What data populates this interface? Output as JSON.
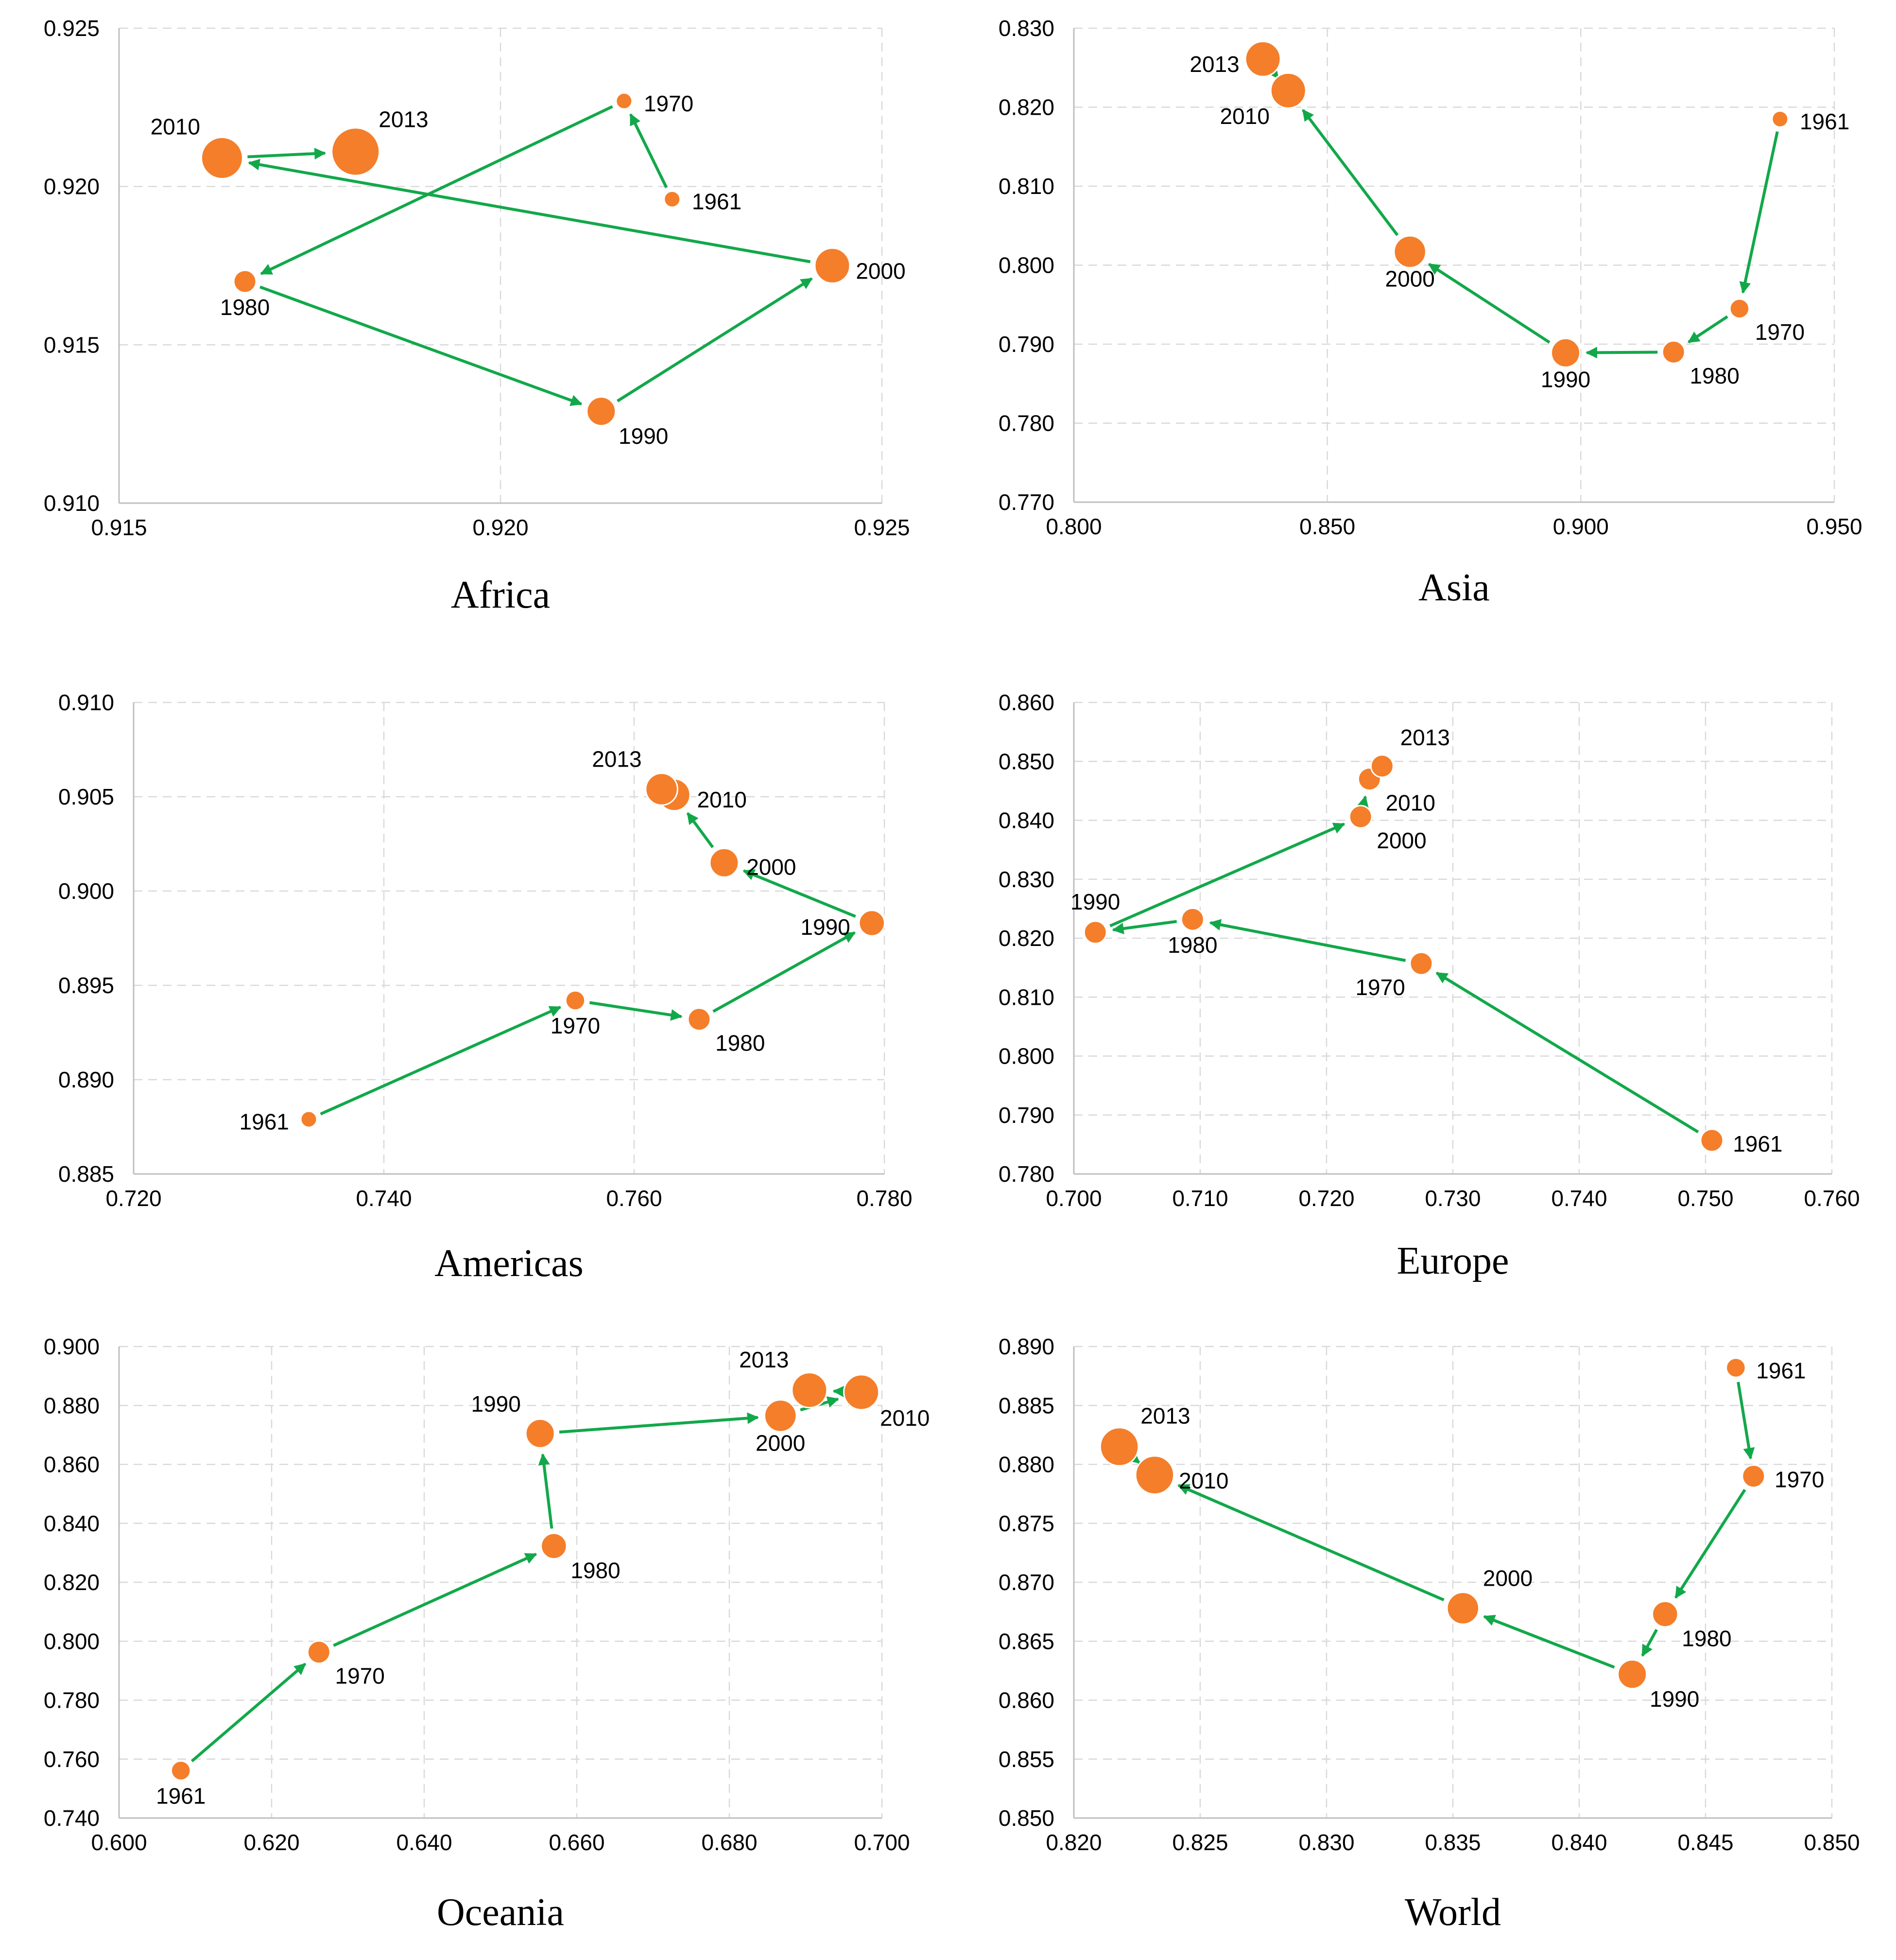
{
  "arrow_color": "#12a84a",
  "point_color": "#f47e2a",
  "chart_data": [
    {
      "type": "scatter",
      "title": "Africa",
      "xlim": [
        0.915,
        0.925
      ],
      "ylim": [
        0.91,
        0.925
      ],
      "xticks": [
        "0.915",
        "0.920",
        "0.925"
      ],
      "yticks": [
        "0.910",
        "0.915",
        "0.920",
        "0.925"
      ],
      "xtick_values": [
        0.915,
        0.92,
        0.925
      ],
      "ytick_values": [
        0.91,
        0.915,
        0.92,
        0.925
      ],
      "points": [
        {
          "label": "1961",
          "x": 0.92225,
          "y": 0.9196,
          "size": 1,
          "label_pos": "right"
        },
        {
          "label": "1970",
          "x": 0.92162,
          "y": 0.9227,
          "size": 1,
          "label_pos": "right"
        },
        {
          "label": "1980",
          "x": 0.91665,
          "y": 0.917,
          "size": 2,
          "label_pos": "below"
        },
        {
          "label": "1990",
          "x": 0.92132,
          "y": 0.9129,
          "size": 3,
          "label_pos": "below-right"
        },
        {
          "label": "2000",
          "x": 0.92435,
          "y": 0.9175,
          "size": 4,
          "label_pos": "right"
        },
        {
          "label": "2010",
          "x": 0.91635,
          "y": 0.9209,
          "size": 5,
          "label_pos": "above-left"
        },
        {
          "label": "2013",
          "x": 0.9181,
          "y": 0.9211,
          "size": 6,
          "label_pos": "above-right"
        }
      ]
    },
    {
      "type": "scatter",
      "title": "Asia",
      "xlim": [
        0.8,
        0.95
      ],
      "ylim": [
        0.77,
        0.83
      ],
      "xticks": [
        "0.800",
        "0.850",
        "0.900",
        "0.950"
      ],
      "yticks": [
        "0.770",
        "0.780",
        "0.790",
        "0.800",
        "0.810",
        "0.820",
        "0.830"
      ],
      "xtick_values": [
        0.8,
        0.85,
        0.9,
        0.95
      ],
      "ytick_values": [
        0.77,
        0.78,
        0.79,
        0.8,
        0.81,
        0.82,
        0.83
      ],
      "points": [
        {
          "label": "1961",
          "x": 0.9393,
          "y": 0.8185,
          "size": 1,
          "label_pos": "right"
        },
        {
          "label": "1970",
          "x": 0.9313,
          "y": 0.7945,
          "size": 1.5,
          "label_pos": "below-right"
        },
        {
          "label": "1980",
          "x": 0.9183,
          "y": 0.789,
          "size": 2,
          "label_pos": "below-right"
        },
        {
          "label": "1990",
          "x": 0.897,
          "y": 0.7889,
          "size": 3,
          "label_pos": "below"
        },
        {
          "label": "2000",
          "x": 0.8663,
          "y": 0.8017,
          "size": 3.5,
          "label_pos": "below"
        },
        {
          "label": "2010",
          "x": 0.8423,
          "y": 0.8221,
          "size": 4,
          "label_pos": "below-left"
        },
        {
          "label": "2013",
          "x": 0.8373,
          "y": 0.8261,
          "size": 4,
          "label_pos": "left"
        }
      ]
    },
    {
      "type": "scatter",
      "title": "Americas",
      "xlim": [
        0.72,
        0.78
      ],
      "ylim": [
        0.885,
        0.91
      ],
      "xticks": [
        "0.720",
        "0.740",
        "0.760",
        "0.780"
      ],
      "yticks": [
        "0.885",
        "0.890",
        "0.895",
        "0.900",
        "0.905",
        "0.910"
      ],
      "xtick_values": [
        0.72,
        0.74,
        0.76,
        0.78
      ],
      "ytick_values": [
        0.885,
        0.89,
        0.895,
        0.9,
        0.905,
        0.91
      ],
      "points": [
        {
          "label": "1961",
          "x": 0.734,
          "y": 0.8879,
          "size": 1,
          "label_pos": "left"
        },
        {
          "label": "1970",
          "x": 0.7553,
          "y": 0.8942,
          "size": 1.5,
          "label_pos": "below"
        },
        {
          "label": "1980",
          "x": 0.7652,
          "y": 0.8932,
          "size": 2,
          "label_pos": "below-right"
        },
        {
          "label": "1990",
          "x": 0.779,
          "y": 0.8983,
          "size": 2.5,
          "label_pos": "left"
        },
        {
          "label": "2000",
          "x": 0.7672,
          "y": 0.9015,
          "size": 3,
          "label_pos": "right"
        },
        {
          "label": "2010",
          "x": 0.7632,
          "y": 0.9051,
          "size": 3.5,
          "label_pos": "right"
        },
        {
          "label": "2013",
          "x": 0.7622,
          "y": 0.9054,
          "size": 3.5,
          "label_pos": "above-left"
        }
      ]
    },
    {
      "type": "scatter",
      "title": "Europe",
      "xlim": [
        0.7,
        0.76
      ],
      "ylim": [
        0.78,
        0.86
      ],
      "xticks": [
        "0.700",
        "0.710",
        "0.720",
        "0.730",
        "0.740",
        "0.750",
        "0.760"
      ],
      "yticks": [
        "0.780",
        "0.790",
        "0.800",
        "0.810",
        "0.820",
        "0.830",
        "0.840",
        "0.850",
        "0.860"
      ],
      "xtick_values": [
        0.7,
        0.71,
        0.72,
        0.73,
        0.74,
        0.75,
        0.76
      ],
      "ytick_values": [
        0.78,
        0.79,
        0.8,
        0.81,
        0.82,
        0.83,
        0.84,
        0.85,
        0.86
      ],
      "points": [
        {
          "label": "1961",
          "x": 0.7505,
          "y": 0.7857,
          "size": 2,
          "label_pos": "right"
        },
        {
          "label": "1970",
          "x": 0.7275,
          "y": 0.8157,
          "size": 2,
          "label_pos": "below-left"
        },
        {
          "label": "1980",
          "x": 0.7094,
          "y": 0.8232,
          "size": 2,
          "label_pos": "below"
        },
        {
          "label": "1990",
          "x": 0.7017,
          "y": 0.821,
          "size": 2,
          "label_pos": "above"
        },
        {
          "label": "2000",
          "x": 0.7227,
          "y": 0.8406,
          "size": 2,
          "label_pos": "below-right"
        },
        {
          "label": "2010",
          "x": 0.7234,
          "y": 0.847,
          "size": 2,
          "label_pos": "below-right"
        },
        {
          "label": "2013",
          "x": 0.7244,
          "y": 0.8492,
          "size": 2,
          "label_pos": "above-right"
        }
      ]
    },
    {
      "type": "scatter",
      "title": "Oceania",
      "xlim": [
        0.6,
        0.7
      ],
      "ylim": [
        0.74,
        0.9
      ],
      "xticks": [
        "0.600",
        "0.620",
        "0.640",
        "0.660",
        "0.680",
        "0.700"
      ],
      "yticks": [
        "0.740",
        "0.760",
        "0.780",
        "0.800",
        "0.820",
        "0.840",
        "0.860",
        "0.880",
        "0.900"
      ],
      "xtick_values": [
        0.6,
        0.62,
        0.64,
        0.66,
        0.68,
        0.7
      ],
      "ytick_values": [
        0.74,
        0.76,
        0.78,
        0.8,
        0.82,
        0.84,
        0.86,
        0.88,
        0.9
      ],
      "points": [
        {
          "label": "1961",
          "x": 0.6081,
          "y": 0.7561,
          "size": 1.5,
          "label_pos": "below"
        },
        {
          "label": "1970",
          "x": 0.6262,
          "y": 0.7963,
          "size": 2,
          "label_pos": "below-right"
        },
        {
          "label": "1980",
          "x": 0.657,
          "y": 0.8323,
          "size": 2.5,
          "label_pos": "below-right"
        },
        {
          "label": "1990",
          "x": 0.6552,
          "y": 0.8705,
          "size": 3,
          "label_pos": "above-left"
        },
        {
          "label": "2000",
          "x": 0.6867,
          "y": 0.8765,
          "size": 3.5,
          "label_pos": "below"
        },
        {
          "label": "2010",
          "x": 0.6973,
          "y": 0.8845,
          "size": 4,
          "label_pos": "below-right"
        },
        {
          "label": "2013",
          "x": 0.6905,
          "y": 0.8852,
          "size": 4,
          "label_pos": "above-left"
        }
      ]
    },
    {
      "type": "scatter",
      "title": "World",
      "xlim": [
        0.82,
        0.85
      ],
      "ylim": [
        0.85,
        0.89
      ],
      "xticks": [
        "0.820",
        "0.825",
        "0.830",
        "0.835",
        "0.840",
        "0.845",
        "0.850"
      ],
      "yticks": [
        "0.850",
        "0.855",
        "0.860",
        "0.865",
        "0.870",
        "0.875",
        "0.880",
        "0.885",
        "0.890"
      ],
      "xtick_values": [
        0.82,
        0.825,
        0.83,
        0.835,
        0.84,
        0.845,
        0.85
      ],
      "ytick_values": [
        0.85,
        0.855,
        0.86,
        0.865,
        0.87,
        0.875,
        0.88,
        0.885,
        0.89
      ],
      "points": [
        {
          "label": "1961",
          "x": 0.8462,
          "y": 0.8882,
          "size": 1.5,
          "label_pos": "right"
        },
        {
          "label": "1970",
          "x": 0.8469,
          "y": 0.879,
          "size": 2,
          "label_pos": "right"
        },
        {
          "label": "1980",
          "x": 0.8434,
          "y": 0.8673,
          "size": 2.5,
          "label_pos": "below-right"
        },
        {
          "label": "1990",
          "x": 0.8421,
          "y": 0.8622,
          "size": 3,
          "label_pos": "below-right"
        },
        {
          "label": "2000",
          "x": 0.8354,
          "y": 0.8678,
          "size": 3.5,
          "label_pos": "above-right"
        },
        {
          "label": "2010",
          "x": 0.8232,
          "y": 0.8791,
          "size": 4.5,
          "label_pos": "right"
        },
        {
          "label": "2013",
          "x": 0.8218,
          "y": 0.8815,
          "size": 4.5,
          "label_pos": "above-right"
        }
      ]
    }
  ]
}
